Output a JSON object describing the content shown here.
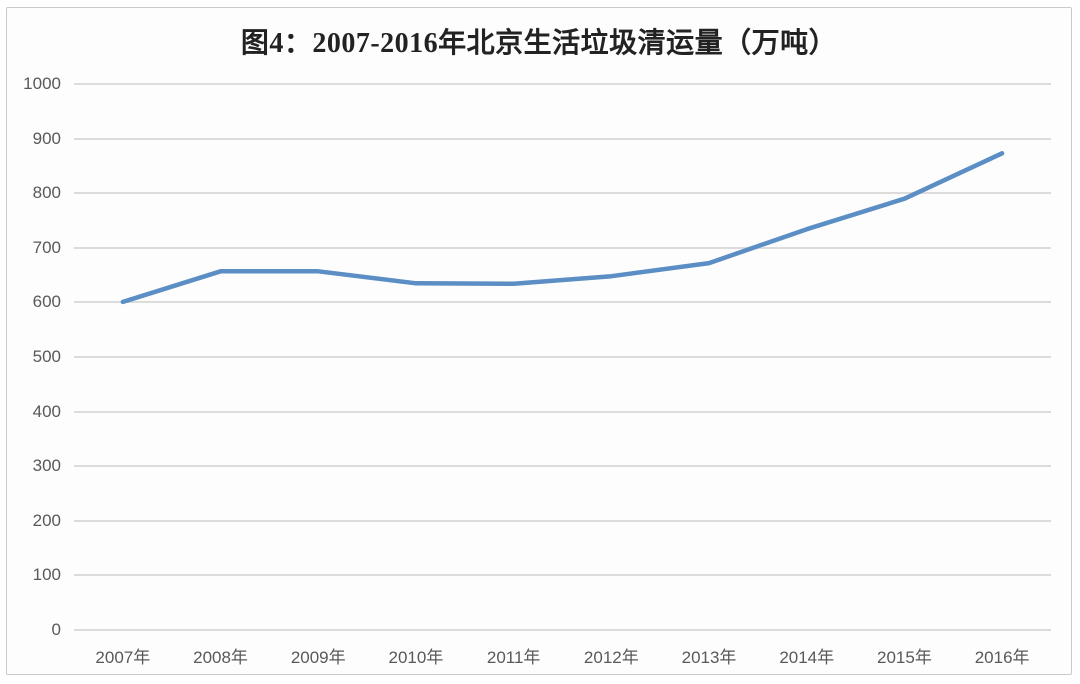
{
  "title": "图4：2007-2016年北京生活垃圾清运量（万吨）",
  "colors": {
    "line": "#5b8ec4",
    "gridline": "#dcdcdc",
    "axis_label": "#595959",
    "title_text": "#222222",
    "card_border": "#c9c9c9",
    "card_background": "#fdfdfd"
  },
  "chart_data": {
    "type": "line",
    "title": "图4：2007-2016年北京生活垃圾清运量（万吨）",
    "categories": [
      "2007年",
      "2008年",
      "2009年",
      "2010年",
      "2011年",
      "2012年",
      "2013年",
      "2014年",
      "2015年",
      "2016年"
    ],
    "values": [
      601,
      657,
      657,
      635,
      634,
      648,
      672,
      734,
      790,
      873
    ],
    "series_name": "生活垃圾清运量（万吨）",
    "xlabel": "",
    "ylabel": "",
    "ylim": [
      0,
      1000
    ],
    "yticks": [
      1000,
      900,
      800,
      700,
      600,
      500,
      400,
      300,
      200,
      100,
      0
    ],
    "grid": "horizontal",
    "legend": "none"
  }
}
